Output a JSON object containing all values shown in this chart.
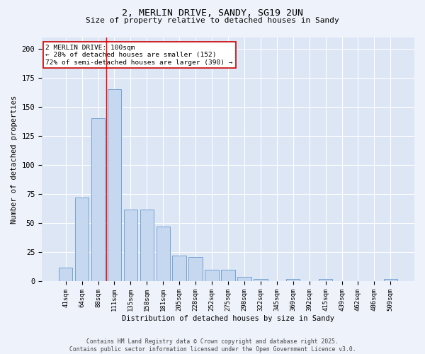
{
  "title1": "2, MERLIN DRIVE, SANDY, SG19 2UN",
  "title2": "Size of property relative to detached houses in Sandy",
  "xlabel": "Distribution of detached houses by size in Sandy",
  "ylabel": "Number of detached properties",
  "bar_labels": [
    "41sqm",
    "64sqm",
    "88sqm",
    "111sqm",
    "135sqm",
    "158sqm",
    "181sqm",
    "205sqm",
    "228sqm",
    "252sqm",
    "275sqm",
    "298sqm",
    "322sqm",
    "345sqm",
    "369sqm",
    "392sqm",
    "415sqm",
    "439sqm",
    "462sqm",
    "486sqm",
    "509sqm"
  ],
  "bar_values": [
    12,
    72,
    140,
    165,
    62,
    62,
    47,
    22,
    21,
    10,
    10,
    4,
    2,
    0,
    2,
    0,
    2,
    0,
    0,
    0,
    2
  ],
  "bar_color": "#c5d8f0",
  "bar_edge_color": "#6699cc",
  "bg_color": "#dce6f5",
  "grid_color": "#ffffff",
  "red_line_x": 2.5,
  "annotation_text": "2 MERLIN DRIVE: 100sqm\n← 28% of detached houses are smaller (152)\n72% of semi-detached houses are larger (390) →",
  "annotation_box_color": "#ffffff",
  "annotation_box_edge": "#cc0000",
  "footer1": "Contains HM Land Registry data © Crown copyright and database right 2025.",
  "footer2": "Contains public sector information licensed under the Open Government Licence v3.0.",
  "ylim": [
    0,
    210
  ],
  "fig_bg": "#eef2fa"
}
